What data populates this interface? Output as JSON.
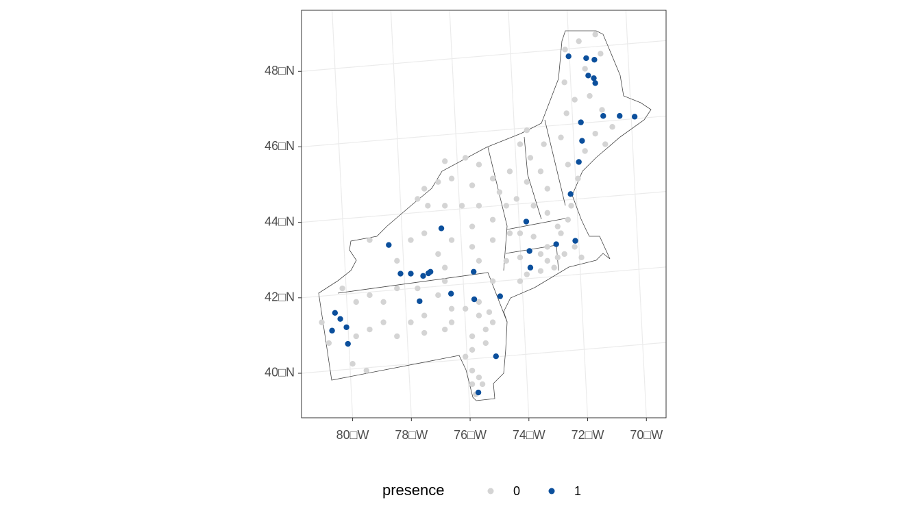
{
  "chart_data": {
    "type": "scatter",
    "xlim": [
      -81.74,
      -69.33
    ],
    "ylim": [
      38.82,
      49.62
    ],
    "xticks": [
      {
        "value": -80,
        "label": "80□W"
      },
      {
        "value": -78,
        "label": "78□W"
      },
      {
        "value": -76,
        "label": "76□W"
      },
      {
        "value": -74,
        "label": "74□W"
      },
      {
        "value": -72,
        "label": "72□W"
      },
      {
        "value": -70,
        "label": "70□W"
      }
    ],
    "yticks": [
      {
        "value": 40,
        "label": "40□N"
      },
      {
        "value": 42,
        "label": "42□N"
      },
      {
        "value": 44,
        "label": "44□N"
      },
      {
        "value": 46,
        "label": "46□N"
      },
      {
        "value": 48,
        "label": "48□N"
      }
    ],
    "grid": true,
    "legend_title": "presence",
    "legend_position": "bottom",
    "series": [
      {
        "name": "0",
        "color": "#d4d4d4",
        "x": [
          -72.77,
          -72.3,
          -71.74,
          -71.56,
          -72.09,
          -72.79,
          -72.44,
          -72.72,
          -71.93,
          -71.51,
          -71.16,
          -71.74,
          -72.09,
          -71.4,
          -72.91,
          -72.67,
          -72.33,
          -72.56,
          -74.3,
          -73.95,
          -73.6,
          -74.07,
          -74.42,
          -73.84,
          -73.37,
          -73.37,
          -74.65,
          -74.07,
          -73.49,
          -76.86,
          -76.16,
          -75.7,
          -77.09,
          -77.56,
          -76.63,
          -75.93,
          -75.23,
          -75.0,
          -75.7,
          -74.77,
          -76.28,
          -76.86,
          -77.44,
          -77.79,
          -75.23,
          -75.93,
          -76.63,
          -77.56,
          -78.02,
          -75.93,
          -75.23,
          -77.09,
          -79.42,
          -78.49,
          -76.86,
          -75.7,
          -74.77,
          -75.23,
          -74.3,
          -77.79,
          -76.86,
          -74.65,
          -74.3,
          -73.84,
          -73.6,
          -73.37,
          -73.02,
          -72.79,
          -73.14,
          -73.6,
          -74.07,
          -73.37,
          -72.91,
          -72.67,
          -73.02,
          -72.44,
          -72.21,
          -74.3,
          -80.35,
          -79.88,
          -79.42,
          -78.95,
          -78.49,
          -77.56,
          -77.09,
          -76.63,
          -76.16,
          -75.7,
          -75.23,
          -78.95,
          -79.88,
          -79.42,
          -78.02,
          -78.49,
          -81.05,
          -80.81,
          -80.0,
          -79.53,
          -77.56,
          -76.86,
          -76.63,
          -75.93,
          -75.47,
          -75.7,
          -75.35,
          -75.47,
          -75.93,
          -76.16,
          -75.93,
          -75.7,
          -75.58,
          -75.93,
          -75.81
        ],
        "y": [
          48.58,
          48.8,
          48.98,
          48.47,
          48.07,
          47.71,
          47.25,
          46.89,
          47.35,
          46.98,
          46.53,
          46.35,
          45.89,
          46.07,
          46.25,
          45.53,
          45.16,
          44.44,
          46.07,
          45.71,
          45.35,
          45.07,
          44.62,
          44.44,
          44.25,
          44.89,
          45.35,
          46.44,
          46.07,
          45.62,
          45.71,
          45.53,
          45.07,
          44.89,
          45.16,
          44.98,
          45.16,
          44.8,
          44.44,
          44.44,
          44.44,
          44.44,
          44.44,
          44.62,
          44.07,
          43.89,
          43.53,
          43.71,
          43.53,
          43.35,
          43.53,
          43.16,
          43.53,
          42.98,
          42.8,
          42.98,
          42.98,
          42.44,
          42.44,
          42.25,
          42.44,
          43.71,
          43.71,
          43.62,
          43.16,
          42.98,
          43.07,
          43.16,
          42.8,
          42.71,
          42.62,
          43.35,
          43.71,
          44.07,
          43.89,
          43.35,
          43.07,
          43.07,
          42.25,
          41.89,
          42.07,
          41.89,
          42.25,
          41.53,
          42.07,
          41.71,
          41.71,
          41.53,
          41.35,
          41.35,
          40.98,
          41.16,
          41.35,
          40.98,
          41.35,
          40.8,
          40.25,
          40.07,
          41.07,
          41.16,
          41.35,
          40.98,
          40.8,
          41.89,
          41.62,
          41.16,
          40.62,
          40.44,
          40.07,
          39.89,
          39.71,
          39.71,
          39.44
        ]
      },
      {
        "name": "1",
        "color": "#0b4f9c",
        "x": [
          -72.65,
          -72.05,
          -71.77,
          -71.98,
          -71.79,
          -71.74,
          -71.47,
          -70.91,
          -70.4,
          -72.23,
          -72.19,
          -72.3,
          -72.58,
          -74.09,
          -76.98,
          -78.77,
          -73.07,
          -72.42,
          -73.98,
          -73.95,
          -78.37,
          -78.02,
          -77.6,
          -77.42,
          -77.35,
          -75.88,
          -76.65,
          -74.98,
          -77.72,
          -75.86,
          -80.6,
          -80.42,
          -80.21,
          -80.7,
          -80.16,
          -75.12,
          -75.72
        ],
        "y": [
          48.4,
          48.35,
          48.31,
          47.89,
          47.82,
          47.69,
          46.82,
          46.82,
          46.8,
          46.65,
          46.16,
          45.6,
          44.75,
          44.02,
          43.84,
          43.4,
          43.42,
          43.51,
          43.24,
          42.8,
          42.64,
          42.64,
          42.58,
          42.65,
          42.69,
          42.69,
          42.11,
          42.04,
          41.91,
          41.96,
          41.6,
          41.44,
          41.22,
          41.13,
          40.78,
          40.45,
          39.49
        ]
      }
    ]
  }
}
